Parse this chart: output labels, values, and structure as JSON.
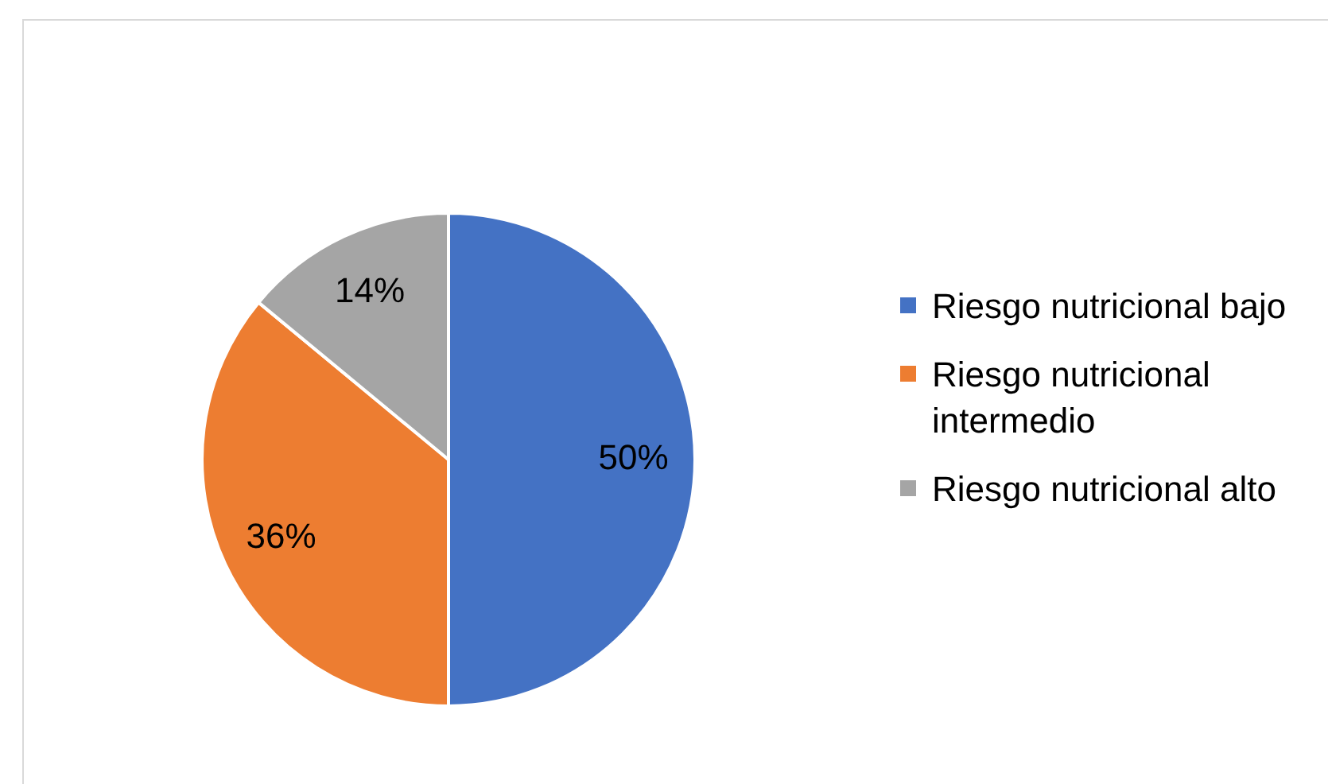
{
  "chart_data": {
    "type": "pie",
    "categories": [
      "Riesgo nutricional bajo",
      "Riesgo nutricional intermedio",
      "Riesgo nutricional alto"
    ],
    "values": [
      50,
      36,
      14
    ],
    "colors": [
      "#4472c4",
      "#ed7d31",
      "#a5a5a5"
    ],
    "value_labels": [
      "50%",
      "36%",
      "14%"
    ],
    "legend": "right"
  }
}
